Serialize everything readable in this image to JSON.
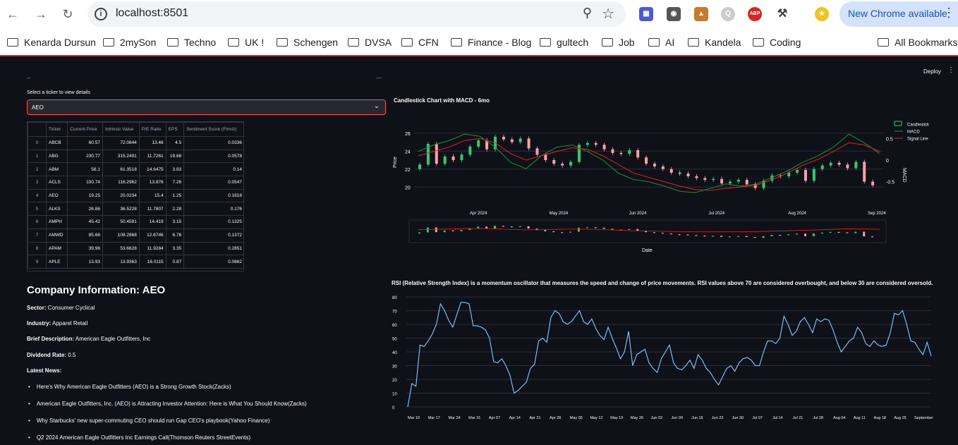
{
  "browser": {
    "url": "localhost:8501",
    "update_label": "New Chrome available",
    "bookmarks": [
      "Kenarda Dursun",
      "2mySon",
      "Techno",
      "UK !",
      "Schengen",
      "DVSA",
      "CFN",
      "Finance - Blog",
      "gultech",
      "Job",
      "AI",
      "Kandela",
      "Coding"
    ],
    "all_bookmarks": "All Bookmarks"
  },
  "app": {
    "deploy_label": "Deploy",
    "dashes_left": "--",
    "dashes_right": "---",
    "select_label": "Select a ticker to view details",
    "selected_ticker": "AEO",
    "table": {
      "columns": [
        "",
        "Ticker",
        "Current Price",
        "Intrinsic Value",
        "P/E Ratio",
        "EPS",
        "Sentiment Score (Finviz)"
      ],
      "rows": [
        [
          "0",
          "ABCB",
          "60.57",
          "72.0844",
          "13.46",
          "4.5",
          "0.0336"
        ],
        [
          "1",
          "ABG",
          "230.77",
          "315.2491",
          "11.7261",
          "19.68",
          "0.0578"
        ],
        [
          "2",
          "ABM",
          "56.1",
          "61.3518",
          "14.6475",
          "3.83",
          "0.14"
        ],
        [
          "3",
          "ACLS",
          "100.74",
          "116.2962",
          "13.876",
          "7.26",
          "0.0547"
        ],
        [
          "4",
          "AEO",
          "19.25",
          "20.0234",
          "15.4",
          "1.25",
          "0.1818"
        ],
        [
          "5",
          "ALKS",
          "26.86",
          "36.5228",
          "11.7807",
          "2.28",
          "0.176"
        ],
        [
          "6",
          "AMPH",
          "45.42",
          "50.4591",
          "14.419",
          "3.15",
          "0.1325"
        ],
        [
          "7",
          "AMWD",
          "85.68",
          "108.2868",
          "12.6746",
          "6.76",
          "0.1372"
        ],
        [
          "8",
          "APAM",
          "39.96",
          "53.6628",
          "11.9284",
          "3.35",
          "0.2851"
        ],
        [
          "9",
          "APLE",
          "13.93",
          "13.9363",
          "16.0115",
          "0.87",
          "0.0862"
        ]
      ]
    },
    "company": {
      "title": "Company Information: AEO",
      "sector_label": "Sector:",
      "sector": "Consumer Cyclical",
      "industry_label": "Industry:",
      "industry": "Apparel Retail",
      "desc_label": "Brief Description:",
      "desc": "American Eagle Outfitters, Inc",
      "dividend_label": "Dividend Rate:",
      "dividend": "0.5",
      "news_label": "Latest News:",
      "news": [
        "Here's Why American Eagle Outfitters (AEO) is a Strong Growth Stock(Zacks)",
        "American Eagle Outfitters, Inc. (AEO) is Attracting Investor Attention: Here is What You Should Know(Zacks)",
        "Why Starbucks' new super-commuting CEO should run Gap CEO's playbook(Yahoo Finance)",
        "Q2 2024 American Eagle Outfitters Inc Earnings Call(Thomson Reuters StreetEvents)"
      ]
    }
  },
  "chart_data": [
    {
      "type": "line",
      "title": "Candlestick Chart with MACD - 6mo",
      "xlabel": "Date",
      "ylabel": "Price",
      "y2label": "MACD",
      "yticks": [
        "26",
        "24",
        "22",
        "20"
      ],
      "y2ticks": [
        "0.5",
        "0",
        "-0.5"
      ],
      "xticks": [
        "Apr 2024",
        "May 2024",
        "Jun 2024",
        "Jul 2024",
        "Aug 2024",
        "Sep 2024"
      ],
      "ylim": [
        19,
        27
      ],
      "legend": [
        "Candlestick",
        "MACD",
        "Signal Line"
      ],
      "series": [
        {
          "name": "Candlestick",
          "values": [
            22.5,
            24.8,
            22.6,
            23.4,
            23.0,
            23.6,
            24.5,
            25.2,
            24.2,
            25.6,
            25.3,
            25.0,
            25.4,
            24.3,
            23.6,
            23.0,
            22.6,
            22.4,
            22.8,
            24.7,
            24.9,
            24.7,
            24.2,
            23.8,
            23.7,
            24.1,
            23.3,
            22.6,
            22.3,
            22.0,
            21.6,
            21.5,
            21.2,
            21.0,
            20.8,
            20.9,
            20.4,
            20.6,
            20.8,
            20.3,
            19.9,
            20.7,
            21.3,
            21.2,
            21.6,
            21.9,
            20.7,
            22.0,
            22.4,
            22.7,
            22.5,
            22.1,
            22.8,
            20.6,
            20.2
          ]
        },
        {
          "name": "MACD",
          "values": [
            0.2,
            0.35,
            0.45,
            0.6,
            0.55,
            0.3,
            -0.05,
            -0.2,
            0.1,
            0.3,
            0.35,
            0.2,
            0.0,
            -0.3,
            -0.45,
            -0.5,
            -0.6,
            -0.72,
            -0.75,
            -0.65,
            -0.55,
            -0.6,
            -0.55,
            -0.4,
            -0.25,
            -0.05,
            0.1,
            0.3,
            0.6,
            0.4,
            0.15
          ]
        },
        {
          "name": "Signal Line",
          "values": [
            0.1,
            0.2,
            0.3,
            0.45,
            0.5,
            0.4,
            0.15,
            0.0,
            0.1,
            0.2,
            0.28,
            0.25,
            0.1,
            -0.1,
            -0.3,
            -0.4,
            -0.5,
            -0.6,
            -0.68,
            -0.7,
            -0.65,
            -0.62,
            -0.58,
            -0.45,
            -0.3,
            -0.12,
            0.02,
            0.2,
            0.4,
            0.35,
            0.2
          ]
        }
      ]
    },
    {
      "type": "line",
      "title": "RSI (Relative Strength Index) is a momentum oscillator that measures the speed and change of price movements. RSI values above 70 are considered overbought, and below 30 are considered oversold.",
      "yticks": [
        "80",
        "70",
        "60",
        "50",
        "40",
        "30",
        "20",
        "10",
        "0"
      ],
      "xticks": [
        "Mar 10",
        "Mar 17",
        "Mar 24",
        "Mar 31",
        "Apr 07",
        "Apr 14",
        "Apr 21",
        "Apr 28",
        "May 05",
        "May 12",
        "May 19",
        "May 26",
        "Jun 02",
        "Jun 09",
        "Jun 16",
        "Jun 23",
        "Jun 30",
        "Jul 07",
        "Jul 14",
        "Jul 21",
        "Jul 28",
        "Aug 04",
        "Aug 11",
        "Aug 18",
        "Aug 25",
        "September"
      ],
      "ylim": [
        0,
        80
      ],
      "series": [
        {
          "name": "RSI",
          "values": [
            0,
            17,
            15,
            45,
            44,
            48,
            53,
            60,
            75,
            70,
            63,
            58,
            67,
            76,
            76,
            75,
            59,
            59,
            58,
            56,
            50,
            33,
            32,
            35,
            30,
            23,
            10,
            12,
            15,
            18,
            28,
            31,
            48,
            50,
            47,
            65,
            70,
            68,
            62,
            60,
            62,
            66,
            70,
            62,
            60,
            64,
            57,
            52,
            49,
            58,
            50,
            43,
            35,
            40,
            55,
            30,
            38,
            40,
            42,
            32,
            28,
            25,
            35,
            40,
            45,
            32,
            28,
            27,
            30,
            34,
            28,
            38,
            34,
            28,
            25,
            20,
            16,
            22,
            28,
            30,
            26,
            32,
            35,
            36,
            34,
            30,
            30,
            40,
            48,
            48,
            46,
            50,
            66,
            60,
            52,
            55,
            62,
            65,
            60,
            54,
            64,
            62,
            64,
            63,
            56,
            47,
            40,
            44,
            48,
            50,
            58,
            54,
            46,
            44,
            48,
            45,
            44,
            45,
            54,
            68,
            67,
            70,
            60,
            48,
            47,
            42,
            38,
            47,
            37
          ]
        }
      ]
    }
  ]
}
